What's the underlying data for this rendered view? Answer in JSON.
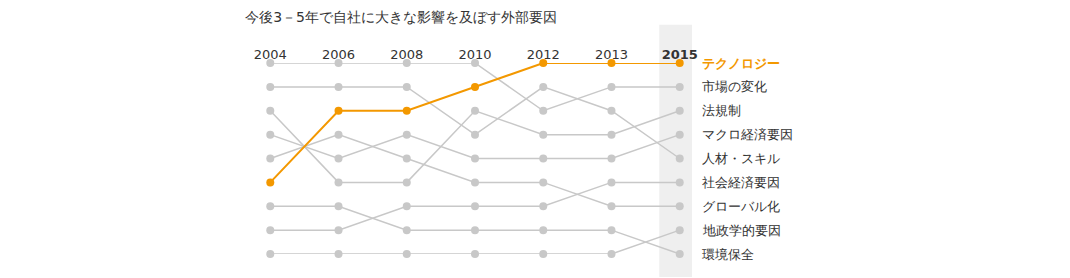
{
  "chart_data": {
    "type": "line",
    "title": "今後3－5年で自社に大きな影響を及ぼす外部要因",
    "categories": [
      "2004",
      "2006",
      "2008",
      "2010",
      "2012",
      "2013",
      "2015"
    ],
    "ylim": [
      9,
      1
    ],
    "yticks": [
      1,
      2,
      3,
      4,
      5,
      6,
      7,
      8,
      9
    ],
    "tick_labels": "x",
    "grid": false,
    "marker": "circle",
    "series": [
      {
        "name": "市場の変化",
        "color": "#c8c8c8",
        "values": [
          1,
          1,
          1,
          1,
          3,
          2,
          2
        ]
      },
      {
        "name": "法規制",
        "color": "#c8c8c8",
        "values": [
          3,
          6,
          6,
          3,
          4,
          4,
          3
        ]
      },
      {
        "name": "マクロ経済要因",
        "color": "#c8c8c8",
        "values": [
          4,
          5,
          4,
          5,
          5,
          5,
          4
        ]
      },
      {
        "name": "人材・スキル",
        "color": "#c8c8c8",
        "values": [
          2,
          2,
          2,
          4,
          2,
          3,
          5
        ]
      },
      {
        "name": "社会経済要因",
        "color": "#c8c8c8",
        "values": [
          8,
          8,
          7,
          7,
          7,
          6,
          6
        ]
      },
      {
        "name": "グローバル化",
        "color": "#c8c8c8",
        "values": [
          5,
          4,
          5,
          6,
          6,
          7,
          7
        ]
      },
      {
        "name": "地政学的要因",
        "color": "#c8c8c8",
        "values": [
          9,
          9,
          9,
          9,
          9,
          9,
          8
        ]
      },
      {
        "name": "環境保全",
        "color": "#c8c8c8",
        "values": [
          7,
          7,
          8,
          8,
          8,
          8,
          9
        ]
      },
      {
        "name": "テクノロジー",
        "color": "#f39800",
        "values": [
          6,
          3,
          3,
          2,
          1,
          1,
          1
        ]
      }
    ]
  }
}
